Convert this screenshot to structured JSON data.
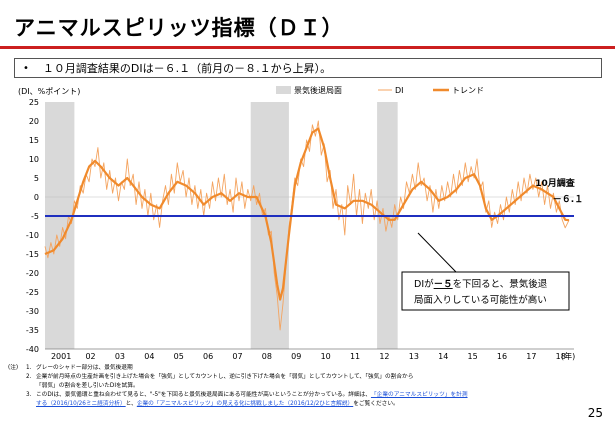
{
  "page": {
    "title": "アニマルスピリッツ指標（ＤＩ）",
    "summary": "１０月調査結果のDIは－６.１（前月の－８.１から上昇）。",
    "page_number": "25"
  },
  "colors": {
    "title_rule": "#cc1f1f",
    "di_line": "#f4a460",
    "trend_line": "#f08a2c",
    "threshold_line": "#1f2fbf",
    "recession_shade": "#d9d9d9",
    "callout_border": "#000000"
  },
  "callouts": {
    "latest_label_line1": "10月調査",
    "latest_label_line2": "－６.１",
    "threshold_text_1a": "DIが",
    "threshold_text_1b": "－５",
    "threshold_text_1c": "を下回ると、景気後退",
    "threshold_text_2": "局面入りしている可能性が高い"
  },
  "notes": {
    "header": "(注)",
    "items": [
      {
        "num": "1.",
        "lines": [
          "グレーのシャドー部分は、景気後退期"
        ]
      },
      {
        "num": "2.",
        "lines": [
          "企業が前月時点の生産計画を引き上げた場合を「強気」としてカウントし、逆に引き下げた場合を「弱気」としてカウントして、「強気」の割合から",
          "「弱気」の割合を差し引いたDIを試算。"
        ]
      },
      {
        "num": "3.",
        "lines": [
          "このDIは、景気循環と重ね合わせて見ると、\"-5\"を下回ると景気後退局面にある可能性が高いということが分かっている。詳細は、"
        ]
      }
    ],
    "link1": "「企業のアニマルスピリッツ」を計測",
    "link2": "する（2016/10/26ミニ経済分析）",
    "mid_text": "と、",
    "link3": "企業の「アニマルスピリッツ」の見える化に挑戦しました（2016/12/2ひと言解説）",
    "tail_text": "をご覧ください。"
  },
  "chart_data": {
    "type": "line",
    "ylabel": "(DI、%ポイント)",
    "xunit": "(年)",
    "ylim": [
      -40,
      25
    ],
    "yticks": [
      25,
      20,
      15,
      10,
      5,
      0,
      -5,
      -10,
      -15,
      -20,
      -25,
      -30,
      -35,
      -40
    ],
    "xlim": [
      2001.0,
      2019.0
    ],
    "xtick_labels": [
      {
        "year": 2001,
        "label": "2001"
      },
      {
        "year": 2002,
        "label": "02"
      },
      {
        "year": 2003,
        "label": "03"
      },
      {
        "year": 2004,
        "label": "04"
      },
      {
        "year": 2005,
        "label": "05"
      },
      {
        "year": 2006,
        "label": "06"
      },
      {
        "year": 2007,
        "label": "07"
      },
      {
        "year": 2008,
        "label": "08"
      },
      {
        "year": 2009,
        "label": "09"
      },
      {
        "year": 2010,
        "label": "10"
      },
      {
        "year": 2011,
        "label": "11"
      },
      {
        "year": 2012,
        "label": "12"
      },
      {
        "year": 2013,
        "label": "13"
      },
      {
        "year": 2014,
        "label": "14"
      },
      {
        "year": 2015,
        "label": "15"
      },
      {
        "year": 2016,
        "label": "16"
      },
      {
        "year": 2017,
        "label": "17"
      },
      {
        "year": 2018,
        "label": "18"
      }
    ],
    "legend": {
      "placement": "top",
      "recession": "景気後退局面",
      "di": "DI",
      "trend": "トレンド"
    },
    "recessions": [
      [
        2001.0,
        2002.0
      ],
      [
        2008.0,
        2009.3
      ],
      [
        2012.3,
        2013.0
      ]
    ],
    "threshold": -5,
    "latest_value": -6.1,
    "series": [
      {
        "name": "トレンド",
        "points": [
          [
            2001.0,
            -15
          ],
          [
            2001.3,
            -14
          ],
          [
            2001.6,
            -11
          ],
          [
            2001.9,
            -6
          ],
          [
            2002.1,
            -1
          ],
          [
            2002.3,
            4
          ],
          [
            2002.5,
            8
          ],
          [
            2002.7,
            9.5
          ],
          [
            2002.9,
            8
          ],
          [
            2003.2,
            5
          ],
          [
            2003.5,
            3
          ],
          [
            2003.8,
            5
          ],
          [
            2004.0,
            3
          ],
          [
            2004.3,
            0
          ],
          [
            2004.6,
            -2
          ],
          [
            2004.9,
            -3
          ],
          [
            2005.2,
            1
          ],
          [
            2005.5,
            4
          ],
          [
            2005.8,
            3
          ],
          [
            2006.1,
            1
          ],
          [
            2006.4,
            -2
          ],
          [
            2006.7,
            0
          ],
          [
            2007.0,
            1
          ],
          [
            2007.3,
            -1
          ],
          [
            2007.6,
            1
          ],
          [
            2007.9,
            0
          ],
          [
            2008.2,
            0
          ],
          [
            2008.5,
            -5
          ],
          [
            2008.7,
            -12
          ],
          [
            2008.9,
            -23
          ],
          [
            2009.0,
            -27
          ],
          [
            2009.1,
            -24
          ],
          [
            2009.3,
            -10
          ],
          [
            2009.5,
            3
          ],
          [
            2009.7,
            9
          ],
          [
            2009.9,
            13
          ],
          [
            2010.1,
            17
          ],
          [
            2010.3,
            18
          ],
          [
            2010.5,
            13
          ],
          [
            2010.7,
            5
          ],
          [
            2010.9,
            -2
          ],
          [
            2011.2,
            -3
          ],
          [
            2011.5,
            -1
          ],
          [
            2011.8,
            -1
          ],
          [
            2012.1,
            -2
          ],
          [
            2012.4,
            -4
          ],
          [
            2012.7,
            -6
          ],
          [
            2012.9,
            -6
          ],
          [
            2013.2,
            -2
          ],
          [
            2013.5,
            2
          ],
          [
            2013.8,
            4
          ],
          [
            2014.1,
            2
          ],
          [
            2014.4,
            -1
          ],
          [
            2014.7,
            0
          ],
          [
            2015.0,
            2
          ],
          [
            2015.3,
            5
          ],
          [
            2015.6,
            6
          ],
          [
            2015.8,
            3
          ],
          [
            2016.0,
            -3
          ],
          [
            2016.2,
            -6
          ],
          [
            2016.4,
            -5
          ],
          [
            2016.7,
            -3
          ],
          [
            2017.0,
            -1
          ],
          [
            2017.3,
            1
          ],
          [
            2017.6,
            3
          ],
          [
            2017.9,
            2
          ],
          [
            2018.1,
            1
          ],
          [
            2018.3,
            0
          ],
          [
            2018.5,
            -3
          ],
          [
            2018.7,
            -6
          ],
          [
            2018.83,
            -6.1
          ]
        ]
      },
      {
        "name": "DI",
        "points": [
          [
            2001.0,
            -13
          ],
          [
            2001.1,
            -16
          ],
          [
            2001.2,
            -12
          ],
          [
            2001.3,
            -15
          ],
          [
            2001.4,
            -10
          ],
          [
            2001.5,
            -13
          ],
          [
            2001.6,
            -8
          ],
          [
            2001.7,
            -11
          ],
          [
            2001.8,
            -5
          ],
          [
            2001.9,
            -7
          ],
          [
            2002.0,
            -1
          ],
          [
            2002.1,
            -3
          ],
          [
            2002.2,
            3
          ],
          [
            2002.3,
            1
          ],
          [
            2002.4,
            6
          ],
          [
            2002.5,
            4
          ],
          [
            2002.6,
            10
          ],
          [
            2002.7,
            8
          ],
          [
            2002.8,
            13
          ],
          [
            2002.9,
            5
          ],
          [
            2003.0,
            9
          ],
          [
            2003.1,
            2
          ],
          [
            2003.2,
            7
          ],
          [
            2003.3,
            1
          ],
          [
            2003.4,
            5
          ],
          [
            2003.5,
            -1
          ],
          [
            2003.6,
            4
          ],
          [
            2003.7,
            2
          ],
          [
            2003.8,
            10
          ],
          [
            2003.9,
            3
          ],
          [
            2004.0,
            6
          ],
          [
            2004.1,
            -2
          ],
          [
            2004.2,
            4
          ],
          [
            2004.3,
            -3
          ],
          [
            2004.4,
            2
          ],
          [
            2004.5,
            -5
          ],
          [
            2004.6,
            1
          ],
          [
            2004.7,
            -6
          ],
          [
            2004.8,
            -2
          ],
          [
            2004.9,
            -8
          ],
          [
            2005.0,
            -1
          ],
          [
            2005.1,
            3
          ],
          [
            2005.2,
            -2
          ],
          [
            2005.3,
            6
          ],
          [
            2005.4,
            1
          ],
          [
            2005.5,
            9
          ],
          [
            2005.6,
            4
          ],
          [
            2005.7,
            7
          ],
          [
            2005.8,
            0
          ],
          [
            2005.9,
            5
          ],
          [
            2006.0,
            -2
          ],
          [
            2006.1,
            3
          ],
          [
            2006.2,
            -3
          ],
          [
            2006.3,
            2
          ],
          [
            2006.4,
            -5
          ],
          [
            2006.5,
            1
          ],
          [
            2006.6,
            -3
          ],
          [
            2006.7,
            4
          ],
          [
            2006.8,
            -1
          ],
          [
            2006.9,
            5
          ],
          [
            2007.0,
            0
          ],
          [
            2007.1,
            6
          ],
          [
            2007.2,
            -2
          ],
          [
            2007.3,
            2
          ],
          [
            2007.4,
            -4
          ],
          [
            2007.5,
            5
          ],
          [
            2007.6,
            -1
          ],
          [
            2007.7,
            4
          ],
          [
            2007.8,
            -3
          ],
          [
            2007.9,
            2
          ],
          [
            2008.0,
            -1
          ],
          [
            2008.1,
            3
          ],
          [
            2008.2,
            -2
          ],
          [
            2008.3,
            1
          ],
          [
            2008.4,
            -5
          ],
          [
            2008.5,
            -3
          ],
          [
            2008.6,
            -10
          ],
          [
            2008.7,
            -9
          ],
          [
            2008.8,
            -20
          ],
          [
            2008.9,
            -26
          ],
          [
            2009.0,
            -35
          ],
          [
            2009.1,
            -28
          ],
          [
            2009.2,
            -18
          ],
          [
            2009.3,
            -8
          ],
          [
            2009.4,
            -2
          ],
          [
            2009.5,
            5
          ],
          [
            2009.6,
            3
          ],
          [
            2009.7,
            10
          ],
          [
            2009.8,
            8
          ],
          [
            2009.9,
            15
          ],
          [
            2010.0,
            12
          ],
          [
            2010.1,
            19
          ],
          [
            2010.2,
            16
          ],
          [
            2010.3,
            20
          ],
          [
            2010.4,
            11
          ],
          [
            2010.5,
            14
          ],
          [
            2010.6,
            4
          ],
          [
            2010.7,
            7
          ],
          [
            2010.8,
            -3
          ],
          [
            2010.9,
            2
          ],
          [
            2011.0,
            -6
          ],
          [
            2011.1,
            -2
          ],
          [
            2011.2,
            -10
          ],
          [
            2011.3,
            3
          ],
          [
            2011.4,
            -2
          ],
          [
            2011.5,
            6
          ],
          [
            2011.6,
            -5
          ],
          [
            2011.7,
            2
          ],
          [
            2011.8,
            -7
          ],
          [
            2011.9,
            1
          ],
          [
            2012.0,
            -3
          ],
          [
            2012.1,
            2
          ],
          [
            2012.2,
            -6
          ],
          [
            2012.3,
            -1
          ],
          [
            2012.4,
            -7
          ],
          [
            2012.5,
            -3
          ],
          [
            2012.6,
            -9
          ],
          [
            2012.7,
            -5
          ],
          [
            2012.8,
            -8
          ],
          [
            2012.9,
            -2
          ],
          [
            2013.0,
            -6
          ],
          [
            2013.1,
            0
          ],
          [
            2013.2,
            -3
          ],
          [
            2013.3,
            4
          ],
          [
            2013.4,
            1
          ],
          [
            2013.5,
            6
          ],
          [
            2013.6,
            2
          ],
          [
            2013.7,
            9
          ],
          [
            2013.8,
            3
          ],
          [
            2013.9,
            5
          ],
          [
            2014.0,
            -1
          ],
          [
            2014.1,
            3
          ],
          [
            2014.2,
            -4
          ],
          [
            2014.3,
            2
          ],
          [
            2014.4,
            -3
          ],
          [
            2014.5,
            3
          ],
          [
            2014.6,
            -1
          ],
          [
            2014.7,
            4
          ],
          [
            2014.8,
            0
          ],
          [
            2014.9,
            6
          ],
          [
            2015.0,
            1
          ],
          [
            2015.1,
            7
          ],
          [
            2015.2,
            3
          ],
          [
            2015.3,
            9
          ],
          [
            2015.4,
            4
          ],
          [
            2015.5,
            8
          ],
          [
            2015.6,
            5
          ],
          [
            2015.7,
            10
          ],
          [
            2015.8,
            2
          ],
          [
            2015.9,
            4
          ],
          [
            2016.0,
            -4
          ],
          [
            2016.1,
            -1
          ],
          [
            2016.2,
            -8
          ],
          [
            2016.3,
            -4
          ],
          [
            2016.4,
            -7
          ],
          [
            2016.5,
            -2
          ],
          [
            2016.6,
            -6
          ],
          [
            2016.7,
            0
          ],
          [
            2016.8,
            -4
          ],
          [
            2016.9,
            2
          ],
          [
            2017.0,
            -2
          ],
          [
            2017.1,
            4
          ],
          [
            2017.2,
            -1
          ],
          [
            2017.3,
            5
          ],
          [
            2017.4,
            1
          ],
          [
            2017.5,
            6
          ],
          [
            2017.6,
            2
          ],
          [
            2017.7,
            5
          ],
          [
            2017.8,
            0
          ],
          [
            2017.9,
            4
          ],
          [
            2018.0,
            -2
          ],
          [
            2018.1,
            3
          ],
          [
            2018.2,
            -3
          ],
          [
            2018.3,
            1
          ],
          [
            2018.4,
            -4
          ],
          [
            2018.5,
            -1
          ],
          [
            2018.6,
            -6
          ],
          [
            2018.7,
            -8.1
          ],
          [
            2018.83,
            -6.1
          ]
        ]
      }
    ]
  }
}
